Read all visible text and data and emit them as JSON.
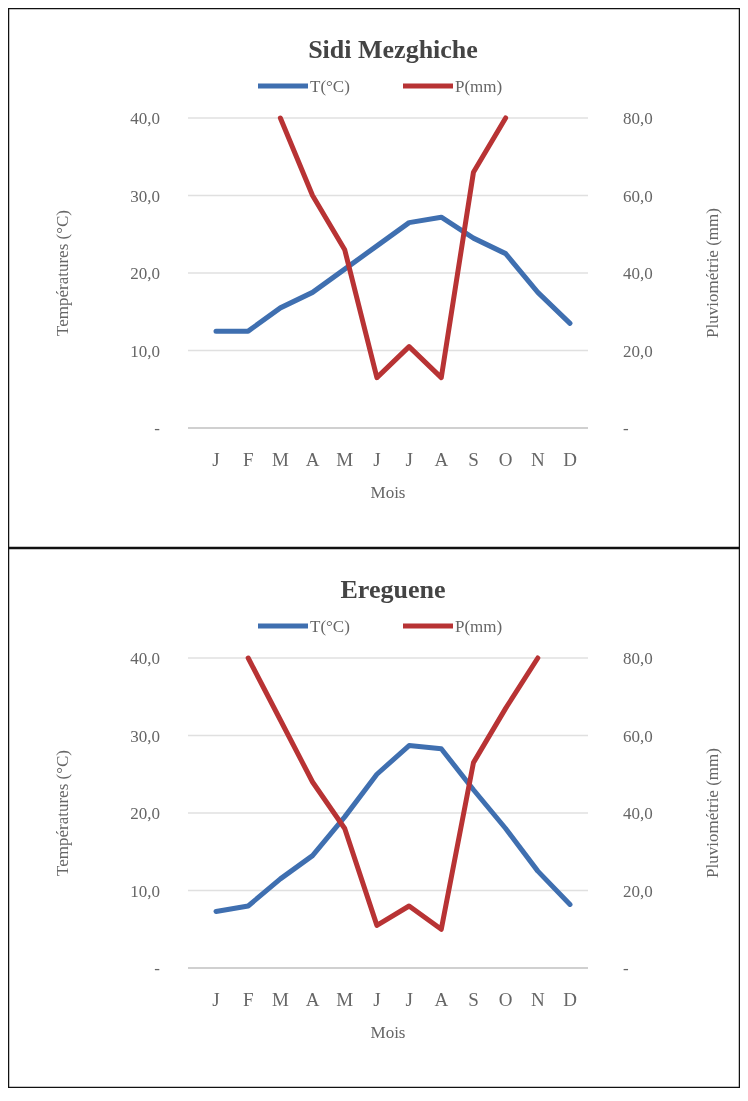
{
  "chart_data": [
    {
      "type": "line",
      "title": "Sidi Mezghiche",
      "xlabel": "Mois",
      "ylabel": "Températures  (°C)",
      "y2label": "Pluviométrie  (mm)",
      "categories": [
        "J",
        "F",
        "M",
        "A",
        "M",
        "J",
        "J",
        "A",
        "S",
        "O",
        "N",
        "D"
      ],
      "series": [
        {
          "name": "T(°C)",
          "color": "#3f6fb0",
          "values": [
            12.5,
            12.5,
            15.5,
            17.5,
            20.5,
            23.5,
            26.5,
            27.2,
            24.5,
            22.5,
            17.5,
            13.5
          ]
        },
        {
          "name": "P(mm)",
          "color": "#b83334",
          "axis": "y2",
          "values": [
            null,
            null,
            80,
            60,
            46,
            13,
            21,
            13,
            66,
            80,
            null,
            null
          ]
        }
      ],
      "ylim": [
        0,
        40
      ],
      "yticks": [
        {
          "value": 0,
          "label": "-"
        },
        {
          "value": 10,
          "label": "10,0"
        },
        {
          "value": 20,
          "label": "20,0"
        },
        {
          "value": 30,
          "label": "30,0"
        },
        {
          "value": 40,
          "label": "40,0"
        }
      ],
      "y2lim": [
        0,
        80
      ],
      "y2ticks": [
        {
          "value": 0,
          "label": "-"
        },
        {
          "value": 20,
          "label": "20,0"
        },
        {
          "value": 40,
          "label": "40,0"
        },
        {
          "value": 60,
          "label": "60,0"
        },
        {
          "value": 80,
          "label": "80,0"
        }
      ],
      "grid": "y",
      "legend": "top",
      "marker": "none",
      "line_style": "solid"
    },
    {
      "type": "line",
      "title": "Ereguene",
      "xlabel": "Mois",
      "ylabel": "Températures  (°C)",
      "y2label": "Pluviométrie  (mm)",
      "categories": [
        "J",
        "F",
        "M",
        "A",
        "M",
        "J",
        "J",
        "A",
        "S",
        "O",
        "N",
        "D"
      ],
      "series": [
        {
          "name": "T(°C)",
          "color": "#3f6fb0",
          "values": [
            7.3,
            8,
            11.5,
            14.5,
            19.5,
            25,
            28.7,
            28.3,
            23,
            18,
            12.5,
            8.2
          ]
        },
        {
          "name": "P(mm)",
          "color": "#b83334",
          "axis": "y2",
          "values": [
            null,
            80,
            64,
            48,
            36,
            11,
            16,
            10,
            53,
            67,
            80,
            null
          ]
        }
      ],
      "ylim": [
        0,
        40
      ],
      "yticks": [
        {
          "value": 0,
          "label": "-"
        },
        {
          "value": 10,
          "label": "10,0"
        },
        {
          "value": 20,
          "label": "20,0"
        },
        {
          "value": 30,
          "label": "30,0"
        },
        {
          "value": 40,
          "label": "40,0"
        }
      ],
      "y2lim": [
        0,
        80
      ],
      "y2ticks": [
        {
          "value": 0,
          "label": "-"
        },
        {
          "value": 20,
          "label": "20,0"
        },
        {
          "value": 40,
          "label": "40,0"
        },
        {
          "value": 60,
          "label": "60,0"
        },
        {
          "value": 80,
          "label": "80,0"
        }
      ],
      "grid": "y",
      "legend": "top",
      "marker": "none",
      "line_style": "solid"
    }
  ]
}
